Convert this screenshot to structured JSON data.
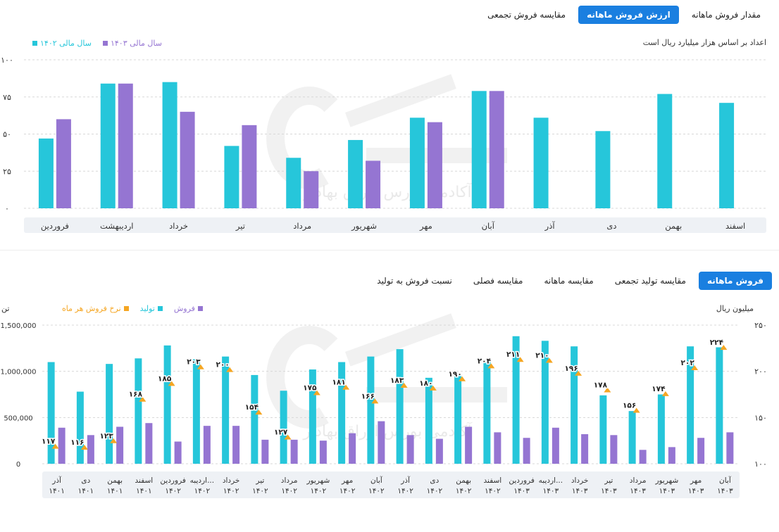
{
  "top": {
    "tabs": [
      {
        "label": "مقدار فروش ماهانه",
        "active": false
      },
      {
        "label": "ارزش فروش ماهانه",
        "active": true
      },
      {
        "label": "مقایسه فروش تجمعی",
        "active": false
      }
    ],
    "note": "اعداد بر اساس هزار میلیارد ریال است",
    "legend": [
      {
        "label": "سال مالی ۱۴۰۳",
        "color": "#9575d2"
      },
      {
        "label": "سال مالی ۱۴۰۲",
        "color": "#26c6da"
      }
    ]
  },
  "bottom": {
    "tabs": [
      {
        "label": "فروش ماهانه",
        "active": true
      },
      {
        "label": "مقایسه تولید تجمعی",
        "active": false
      },
      {
        "label": "مقایسه ماهانه",
        "active": false
      },
      {
        "label": "مقایسه فصلی",
        "active": false
      },
      {
        "label": "نسبت فروش به تولید",
        "active": false
      }
    ],
    "left_unit": "تن",
    "right_unit": "میلیون ریال",
    "legend": [
      {
        "label": "فروش",
        "color": "#9575d2"
      },
      {
        "label": "تولید",
        "color": "#26c6da"
      },
      {
        "label": "نرخ فروش هر ماه",
        "color": "#f5a623"
      }
    ]
  },
  "watermark": {
    "text": "آکادمی بورس اوراق بهادار",
    "color": "#dcdcdc"
  },
  "chart_data": [
    {
      "type": "bar",
      "categories": [
        "فروردین",
        "اردیبهشت",
        "خرداد",
        "تیر",
        "مرداد",
        "شهریور",
        "مهر",
        "آبان",
        "آذر",
        "دی",
        "بهمن",
        "اسفند"
      ],
      "series": [
        {
          "name": "سال مالی ۱۴۰۲",
          "color": "#26c6da",
          "values": [
            47,
            84,
            85,
            42,
            34,
            46,
            61,
            79,
            61,
            52,
            77,
            71
          ]
        },
        {
          "name": "سال مالی ۱۴۰۳",
          "color": "#9575d2",
          "values": [
            60,
            84,
            65,
            56,
            25,
            32,
            58,
            79,
            null,
            null,
            null,
            null
          ]
        }
      ],
      "ylim": [
        0,
        100
      ],
      "yticks": [
        "۰",
        "۲۵",
        "۵۰",
        "۷۵",
        "۱۰۰"
      ],
      "ytick_values": [
        0,
        25,
        50,
        75,
        100
      ],
      "grid": true
    },
    {
      "type": "bar",
      "categories": [
        [
          "آذر",
          "۱۴۰۱"
        ],
        [
          "دی",
          "۱۴۰۱"
        ],
        [
          "بهمن",
          "۱۴۰۱"
        ],
        [
          "اسفند",
          "۱۴۰۱"
        ],
        [
          "فروردین",
          "۱۴۰۲"
        ],
        [
          "اردیبه...",
          "۱۴۰۲"
        ],
        [
          "خرداد",
          "۱۴۰۲"
        ],
        [
          "تیر",
          "۱۴۰۲"
        ],
        [
          "مرداد",
          "۱۴۰۲"
        ],
        [
          "شهریور",
          "۱۴۰۲"
        ],
        [
          "مهر",
          "۱۴۰۲"
        ],
        [
          "آبان",
          "۱۴۰۲"
        ],
        [
          "آذر",
          "۱۴۰۲"
        ],
        [
          "دی",
          "۱۴۰۲"
        ],
        [
          "بهمن",
          "۱۴۰۲"
        ],
        [
          "اسفند",
          "۱۴۰۲"
        ],
        [
          "فروردین",
          "۱۴۰۳"
        ],
        [
          "اردیبه...",
          "۱۴۰۳"
        ],
        [
          "خرداد",
          "۱۴۰۳"
        ],
        [
          "تیر",
          "۱۴۰۳"
        ],
        [
          "مرداد",
          "۱۴۰۳"
        ],
        [
          "شهریور",
          "۱۴۰۳"
        ],
        [
          "مهر",
          "۱۴۰۳"
        ],
        [
          "آبان",
          "۱۴۰۳"
        ]
      ],
      "series": [
        {
          "name": "تولید",
          "color": "#26c6da",
          "axis": "left",
          "values": [
            1100000,
            780000,
            1080000,
            1140000,
            1280000,
            1130000,
            1160000,
            960000,
            790000,
            1020000,
            1100000,
            1160000,
            1240000,
            930000,
            960000,
            1100000,
            1380000,
            1330000,
            1270000,
            740000,
            570000,
            750000,
            1270000,
            1260000
          ]
        },
        {
          "name": "فروش",
          "color": "#9575d2",
          "axis": "left",
          "values": [
            390000,
            310000,
            400000,
            440000,
            240000,
            410000,
            410000,
            260000,
            260000,
            250000,
            330000,
            460000,
            310000,
            270000,
            400000,
            340000,
            280000,
            390000,
            320000,
            310000,
            150000,
            180000,
            280000,
            340000
          ]
        },
        {
          "name": "نرخ فروش هر ماه",
          "color": "#f5a623",
          "axis": "right",
          "values": [
            117,
            116,
            123,
            168,
            185,
            203,
            200,
            154,
            127,
            175,
            181,
            166,
            183,
            180,
            190,
            204,
            211,
            210,
            196,
            178,
            156,
            174,
            202,
            224
          ],
          "labels": [
            "۱۱۷",
            "۱۱۶",
            "۱۲۳",
            "۱۶۸",
            "۱۸۵",
            "۲۰۳",
            "۲۰۰",
            "۱۵۴",
            "۱۲۷",
            "۱۷۵",
            "۱۸۱",
            "۱۶۶",
            "۱۸۳",
            "۱۸۰",
            "۱۹۰",
            "۲۰۴",
            "۲۱۱",
            "۲۱۰",
            "۱۹۶",
            "۱۷۸",
            "۱۵۶",
            "۱۷۴",
            "۲۰۲",
            "۲۲۴"
          ]
        }
      ],
      "ylim_left": [
        0,
        1500000
      ],
      "yticks_left": [
        "0",
        "500,000",
        "1,000,000",
        "1,500,000"
      ],
      "ytick_values_left": [
        0,
        500000,
        1000000,
        1500000
      ],
      "ylim_right": [
        100,
        250
      ],
      "yticks_right": [
        "۱۰۰",
        "۱۵۰",
        "۲۰۰",
        "۲۵۰"
      ],
      "ytick_values_right": [
        100,
        150,
        200,
        250
      ],
      "grid": true
    }
  ]
}
